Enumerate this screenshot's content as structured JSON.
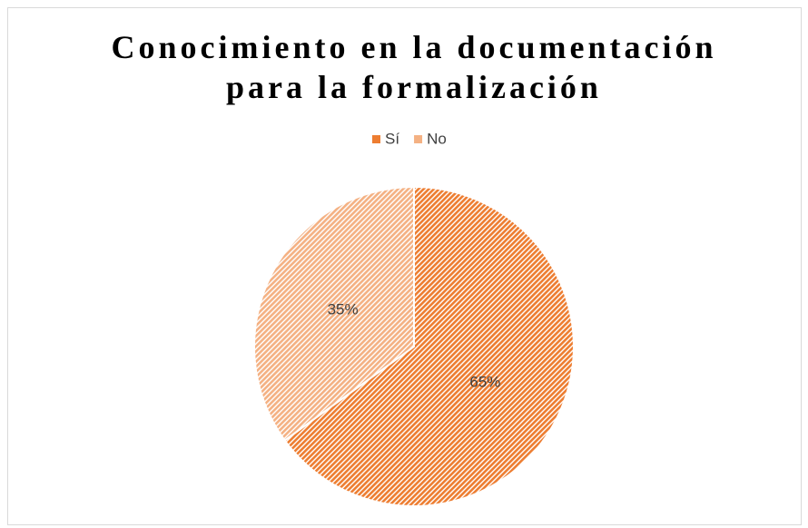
{
  "chart_data": {
    "type": "pie",
    "title": "Conocimiento en la documentación para la formalización",
    "categories": [
      "Sí",
      "No"
    ],
    "values": [
      65,
      35
    ],
    "value_labels": [
      "65%",
      "35%"
    ],
    "colors": [
      "#ed7d31",
      "#f4b183"
    ],
    "legend": "top"
  }
}
